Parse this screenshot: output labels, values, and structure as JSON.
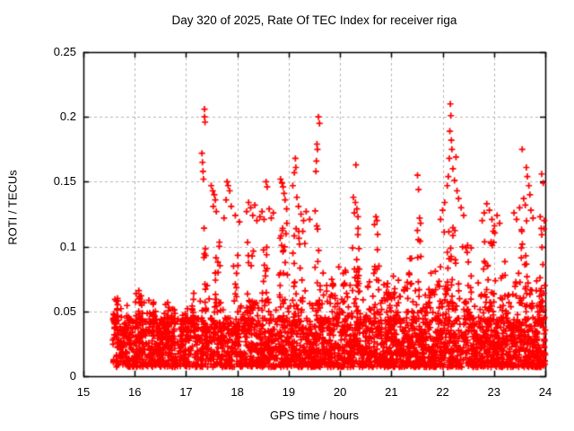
{
  "chart_data": {
    "type": "scatter",
    "title": "Day 320 of 2025, Rate Of TEC Index for receiver riga",
    "xlabel": "GPS time / hours",
    "ylabel": "ROTI / TECUs",
    "xlim": [
      15,
      24
    ],
    "ylim": [
      0,
      0.25
    ],
    "xticks": [
      15,
      16,
      17,
      18,
      19,
      20,
      21,
      22,
      23,
      24
    ],
    "yticks": [
      0,
      0.05,
      0.1,
      0.15,
      0.2,
      0.25
    ],
    "ytick_labels": [
      "0",
      "0.05",
      "0.1",
      "0.15",
      "0.2",
      "0.25"
    ],
    "grid": true,
    "legend": "none",
    "marker": {
      "shape": "plus",
      "color": "#ff0000",
      "size": 7,
      "stroke": 1.7
    },
    "colors": {
      "background": "#ffffff",
      "border": "#000000",
      "grid": "#b5b5b5",
      "text": "#000000"
    },
    "series": [
      {
        "name": "ROTI",
        "points": [
          [
            17.31,
            0.172
          ],
          [
            17.32,
            0.165
          ],
          [
            17.33,
            0.158
          ],
          [
            17.34,
            0.152
          ],
          [
            17.36,
            0.206
          ],
          [
            17.36,
            0.2
          ],
          [
            17.37,
            0.196
          ],
          [
            17.49,
            0.147
          ],
          [
            17.52,
            0.143
          ],
          [
            17.55,
            0.14
          ],
          [
            17.57,
            0.136
          ],
          [
            17.53,
            0.131
          ],
          [
            17.59,
            0.127
          ],
          [
            17.74,
            0.122
          ],
          [
            17.78,
            0.136
          ],
          [
            17.8,
            0.15
          ],
          [
            17.82,
            0.147
          ],
          [
            17.85,
            0.143
          ],
          [
            17.88,
            0.131
          ],
          [
            17.96,
            0.124
          ],
          [
            18.04,
            0.119
          ],
          [
            18.18,
            0.127
          ],
          [
            18.22,
            0.134
          ],
          [
            18.26,
            0.13
          ],
          [
            18.3,
            0.124
          ],
          [
            18.34,
            0.132
          ],
          [
            18.38,
            0.12
          ],
          [
            18.44,
            0.123
          ],
          [
            18.48,
            0.127
          ],
          [
            18.52,
            0.121
          ],
          [
            18.56,
            0.15
          ],
          [
            18.58,
            0.146
          ],
          [
            18.62,
            0.129
          ],
          [
            18.66,
            0.122
          ],
          [
            18.7,
            0.126
          ],
          [
            18.84,
            0.152
          ],
          [
            18.87,
            0.149
          ],
          [
            18.89,
            0.146
          ],
          [
            18.91,
            0.141
          ],
          [
            18.93,
            0.136
          ],
          [
            18.96,
            0.129
          ],
          [
            19.08,
            0.147
          ],
          [
            19.11,
            0.157
          ],
          [
            19.13,
            0.168
          ],
          [
            19.14,
            0.161
          ],
          [
            19.16,
            0.138
          ],
          [
            19.19,
            0.131
          ],
          [
            19.24,
            0.125
          ],
          [
            19.29,
            0.12
          ],
          [
            19.34,
            0.127
          ],
          [
            19.41,
            0.121
          ],
          [
            19.53,
            0.158
          ],
          [
            19.54,
            0.166
          ],
          [
            19.55,
            0.179
          ],
          [
            19.56,
            0.175
          ],
          [
            19.58,
            0.2
          ],
          [
            19.6,
            0.195
          ],
          [
            20.26,
            0.138
          ],
          [
            20.28,
            0.126
          ],
          [
            20.3,
            0.134
          ],
          [
            20.31,
            0.163
          ],
          [
            20.33,
            0.129
          ],
          [
            20.35,
            0.123
          ],
          [
            20.67,
            0.117
          ],
          [
            20.7,
            0.123
          ],
          [
            20.72,
            0.12
          ],
          [
            21.51,
            0.155
          ],
          [
            21.53,
            0.144
          ],
          [
            21.55,
            0.122
          ],
          [
            21.57,
            0.118
          ],
          [
            21.96,
            0.121
          ],
          [
            22.0,
            0.128
          ],
          [
            22.04,
            0.134
          ],
          [
            22.09,
            0.147
          ],
          [
            22.11,
            0.154
          ],
          [
            22.13,
            0.168
          ],
          [
            22.14,
            0.189
          ],
          [
            22.15,
            0.21
          ],
          [
            22.16,
            0.201
          ],
          [
            22.17,
            0.182
          ],
          [
            22.18,
            0.175
          ],
          [
            22.2,
            0.16
          ],
          [
            22.23,
            0.151
          ],
          [
            22.26,
            0.169
          ],
          [
            22.28,
            0.143
          ],
          [
            22.31,
            0.137
          ],
          [
            22.36,
            0.13
          ],
          [
            22.41,
            0.124
          ],
          [
            22.77,
            0.12
          ],
          [
            22.81,
            0.126
          ],
          [
            22.86,
            0.133
          ],
          [
            22.91,
            0.128
          ],
          [
            22.96,
            0.121
          ],
          [
            23.01,
            0.116
          ],
          [
            23.06,
            0.124
          ],
          [
            23.11,
            0.118
          ],
          [
            23.39,
            0.126
          ],
          [
            23.44,
            0.121
          ],
          [
            23.5,
            0.13
          ],
          [
            23.55,
            0.175
          ],
          [
            23.58,
            0.137
          ],
          [
            23.61,
            0.132
          ],
          [
            23.63,
            0.161
          ],
          [
            23.65,
            0.154
          ],
          [
            23.68,
            0.147
          ],
          [
            23.7,
            0.14
          ],
          [
            23.72,
            0.128
          ],
          [
            23.76,
            0.122
          ],
          [
            23.9,
            0.123
          ],
          [
            23.92,
            0.114
          ],
          [
            23.93,
            0.156
          ],
          [
            23.96,
            0.149
          ],
          [
            23.98,
            0.12
          ],
          [
            23.99,
            0.07
          ],
          [
            23.97,
            0.064
          ],
          [
            15.64,
            0.058
          ],
          [
            15.66,
            0.052
          ],
          [
            16.08,
            0.066
          ],
          [
            16.1,
            0.06
          ],
          [
            16.36,
            0.056
          ],
          [
            17.15,
            0.064
          ]
        ]
      }
    ],
    "generated": {
      "seed": 42,
      "base_band": {
        "x_start": 15.57,
        "x_end": 24.0,
        "count": 2800,
        "y_min": 0.007,
        "y_span": 0.038,
        "power": 1.4
      },
      "fuzz": [
        {
          "x_start": 15.6,
          "x_end": 19.5,
          "count": 120,
          "y_min": 0.04,
          "y_max": 0.06
        },
        {
          "x_start": 19.5,
          "x_end": 24.0,
          "count": 220,
          "y_min": 0.042,
          "y_max": 0.075
        }
      ],
      "bumps": [
        {
          "x": 15.63,
          "spread": 0.05,
          "count": 12,
          "y_min": 0.04,
          "y_max": 0.062
        },
        {
          "x": 16.08,
          "spread": 0.07,
          "count": 14,
          "y_min": 0.04,
          "y_max": 0.068
        },
        {
          "x": 16.35,
          "spread": 0.05,
          "count": 8,
          "y_min": 0.04,
          "y_max": 0.058
        },
        {
          "x": 16.62,
          "spread": 0.05,
          "count": 8,
          "y_min": 0.04,
          "y_max": 0.06
        },
        {
          "x": 16.9,
          "spread": 0.3,
          "count": 10,
          "y_min": 0.04,
          "y_max": 0.052
        },
        {
          "x": 17.15,
          "spread": 0.05,
          "count": 8,
          "y_min": 0.04,
          "y_max": 0.065
        }
      ],
      "columns": [
        {
          "x": 17.38,
          "spread": 0.04,
          "count": 10,
          "y_min": 0.048,
          "y_max": 0.118
        },
        {
          "x": 17.6,
          "spread": 0.06,
          "count": 14,
          "y_min": 0.048,
          "y_max": 0.105
        },
        {
          "x": 17.97,
          "spread": 0.05,
          "count": 10,
          "y_min": 0.048,
          "y_max": 0.096
        },
        {
          "x": 18.26,
          "spread": 0.08,
          "count": 16,
          "y_min": 0.048,
          "y_max": 0.112
        },
        {
          "x": 18.53,
          "spread": 0.06,
          "count": 14,
          "y_min": 0.048,
          "y_max": 0.118
        },
        {
          "x": 18.9,
          "spread": 0.09,
          "count": 20,
          "y_min": 0.048,
          "y_max": 0.125
        },
        {
          "x": 19.2,
          "spread": 0.12,
          "count": 22,
          "y_min": 0.048,
          "y_max": 0.115
        },
        {
          "x": 19.56,
          "spread": 0.05,
          "count": 12,
          "y_min": 0.048,
          "y_max": 0.145
        },
        {
          "x": 19.8,
          "spread": 0.15,
          "count": 12,
          "y_min": 0.045,
          "y_max": 0.085
        },
        {
          "x": 20.1,
          "spread": 0.15,
          "count": 14,
          "y_min": 0.045,
          "y_max": 0.085
        },
        {
          "x": 20.31,
          "spread": 0.07,
          "count": 16,
          "y_min": 0.048,
          "y_max": 0.12
        },
        {
          "x": 20.7,
          "spread": 0.06,
          "count": 12,
          "y_min": 0.048,
          "y_max": 0.112
        },
        {
          "x": 21.0,
          "spread": 0.15,
          "count": 10,
          "y_min": 0.045,
          "y_max": 0.08
        },
        {
          "x": 21.37,
          "spread": 0.08,
          "count": 12,
          "y_min": 0.045,
          "y_max": 0.092
        },
        {
          "x": 21.55,
          "spread": 0.05,
          "count": 10,
          "y_min": 0.048,
          "y_max": 0.118
        },
        {
          "x": 21.85,
          "spread": 0.12,
          "count": 10,
          "y_min": 0.045,
          "y_max": 0.085
        },
        {
          "x": 22.15,
          "spread": 0.12,
          "count": 26,
          "y_min": 0.048,
          "y_max": 0.118
        },
        {
          "x": 22.48,
          "spread": 0.1,
          "count": 16,
          "y_min": 0.048,
          "y_max": 0.104
        },
        {
          "x": 22.9,
          "spread": 0.12,
          "count": 20,
          "y_min": 0.048,
          "y_max": 0.112
        },
        {
          "x": 23.15,
          "spread": 0.08,
          "count": 10,
          "y_min": 0.045,
          "y_max": 0.095
        },
        {
          "x": 23.55,
          "spread": 0.1,
          "count": 16,
          "y_min": 0.048,
          "y_max": 0.122
        },
        {
          "x": 23.93,
          "spread": 0.05,
          "count": 12,
          "y_min": 0.048,
          "y_max": 0.12
        }
      ]
    }
  }
}
